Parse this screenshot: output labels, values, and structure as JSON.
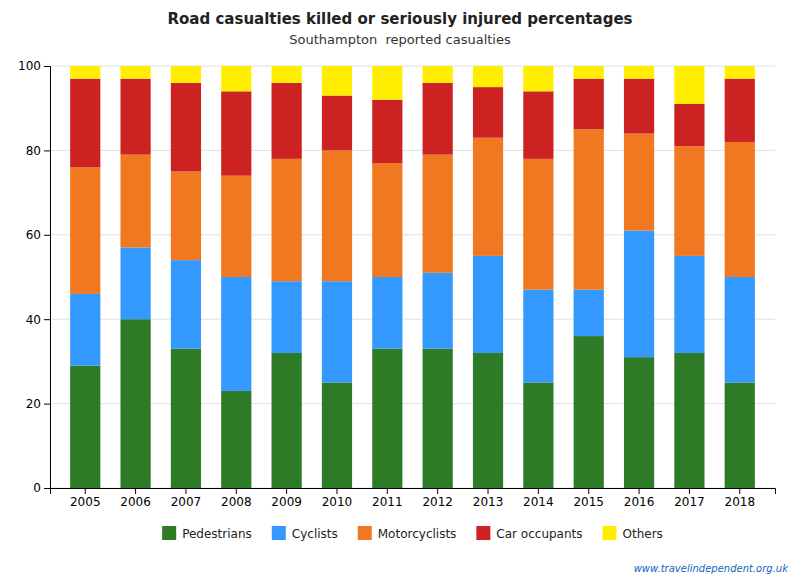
{
  "chart_data": {
    "type": "bar",
    "stacked": true,
    "title": "Road casualties killed or seriously injured percentages",
    "subtitle": "Southampton  reported casualties",
    "annotations": [
      "www.travelindependent.org.uk"
    ],
    "categories": [
      "2005",
      "2006",
      "2007",
      "2008",
      "2009",
      "2010",
      "2011",
      "2012",
      "2013",
      "2014",
      "2015",
      "2016",
      "2017",
      "2018"
    ],
    "series": [
      {
        "name": "Pedestrians",
        "color": "#2d7a27",
        "values": [
          29,
          40,
          33,
          23,
          32,
          25,
          33,
          33,
          32,
          25,
          36,
          31,
          32,
          25
        ]
      },
      {
        "name": "Cyclists",
        "color": "#3399ff",
        "values": [
          17,
          17,
          21,
          27,
          17,
          24,
          17,
          18,
          23,
          22,
          11,
          30,
          23,
          25
        ]
      },
      {
        "name": "Motorcyclists",
        "color": "#f07820",
        "values": [
          30,
          22,
          21,
          24,
          29,
          31,
          27,
          28,
          28,
          31,
          38,
          23,
          26,
          32
        ]
      },
      {
        "name": "Car occupants",
        "color": "#cc2222",
        "values": [
          21,
          18,
          21,
          20,
          18,
          13,
          15,
          17,
          12,
          16,
          12,
          13,
          10,
          15
        ]
      },
      {
        "name": "Others",
        "color": "#ffee00",
        "values": [
          3,
          3,
          4,
          6,
          4,
          7,
          8,
          4,
          5,
          6,
          3,
          3,
          9,
          3
        ]
      }
    ],
    "ylim": [
      0,
      100
    ],
    "yticks": [
      0,
      20,
      40,
      60,
      80,
      100
    ],
    "grid": true,
    "legend": "bottom"
  }
}
